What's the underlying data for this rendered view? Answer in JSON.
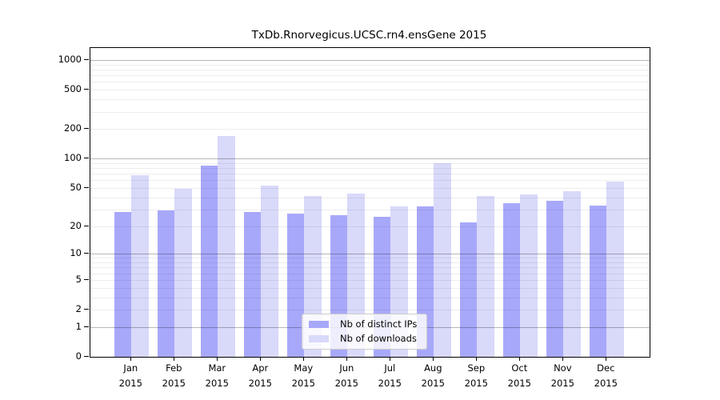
{
  "chart_data": {
    "type": "bar",
    "title": "TxDb.Rnorvegicus.UCSC.rn4.ensGene 2015",
    "months": [
      "Jan",
      "Feb",
      "Mar",
      "Apr",
      "May",
      "Jun",
      "Jul",
      "Aug",
      "Sep",
      "Oct",
      "Nov",
      "Dec"
    ],
    "year_label": "2015",
    "series": [
      {
        "name": "Nb of distinct IPs",
        "color": "#a8a8fa",
        "values": [
          28,
          29,
          84,
          28,
          27,
          26,
          25,
          32,
          22,
          35,
          37,
          33
        ]
      },
      {
        "name": "Nb of downloads",
        "color": "#d9d9fa",
        "values": [
          67,
          49,
          170,
          53,
          41,
          44,
          32,
          90,
          41,
          43,
          46,
          58
        ]
      }
    ],
    "y_axis": {
      "scale": "log1p",
      "tick_values": [
        0,
        1,
        2,
        5,
        10,
        20,
        50,
        100,
        200,
        500,
        1000
      ],
      "range": [
        0,
        1000
      ]
    },
    "grid": {
      "on": true,
      "minor_color": "rgba(0,0,0,0.07)",
      "major_color": "rgba(0,0,0,0.28)",
      "major_values": [
        1,
        10,
        100,
        1000
      ],
      "drawn_above_bars": true
    },
    "legend": {
      "position": "bottom-center-inside"
    },
    "frame_color": "#000000",
    "background_color": "#ffffff"
  }
}
